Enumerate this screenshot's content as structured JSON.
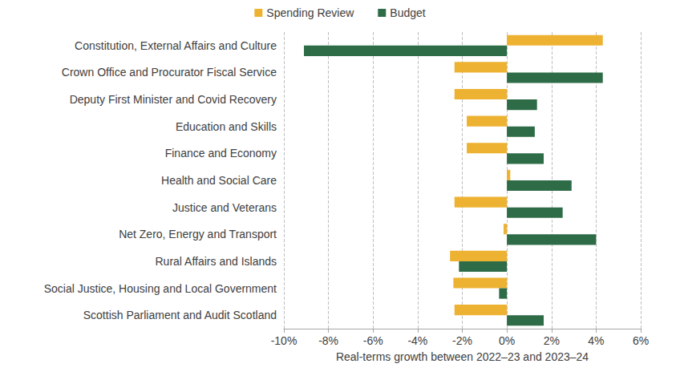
{
  "chart_data": {
    "type": "bar",
    "orientation": "horizontal",
    "categories": [
      "Constitution, External Affairs and Culture",
      "Crown Office and Procurator Fiscal Service",
      "Deputy First Minister and Covid Recovery",
      "Education and Skills",
      "Finance and Economy",
      "Health and Social Care",
      "Justice and Veterans",
      "Net Zero, Energy and Transport",
      "Rural Affairs and Islands",
      "Social Justice, Housing and Local Government",
      "Scottish Parliament and Audit Scotland"
    ],
    "series": [
      {
        "name": "Spending Review",
        "color": "#EDB232",
        "values": [
          4.3,
          -2.35,
          -2.35,
          -1.8,
          -1.8,
          0.15,
          -2.35,
          -0.15,
          -2.55,
          -2.4,
          -2.35
        ]
      },
      {
        "name": "Budget",
        "color": "#2E6B47",
        "values": [
          -9.1,
          4.3,
          1.35,
          1.25,
          1.65,
          2.9,
          2.5,
          4.0,
          -2.15,
          -0.35,
          1.65
        ]
      }
    ],
    "x_label": "Real-terms growth between 2022–23 and 2023–24",
    "xlim": [
      -10,
      6
    ],
    "xticks": [
      {
        "value": -10,
        "label": "-10%"
      },
      {
        "value": -8,
        "label": "-8%"
      },
      {
        "value": -6,
        "label": "-6%"
      },
      {
        "value": -4,
        "label": "-4%"
      },
      {
        "value": -2,
        "label": "-2%"
      },
      {
        "value": 0,
        "label": "0%"
      },
      {
        "value": 2,
        "label": "2%"
      },
      {
        "value": 4,
        "label": "4%"
      },
      {
        "value": 6,
        "label": "6%"
      }
    ],
    "grid": true,
    "legend": "top"
  }
}
